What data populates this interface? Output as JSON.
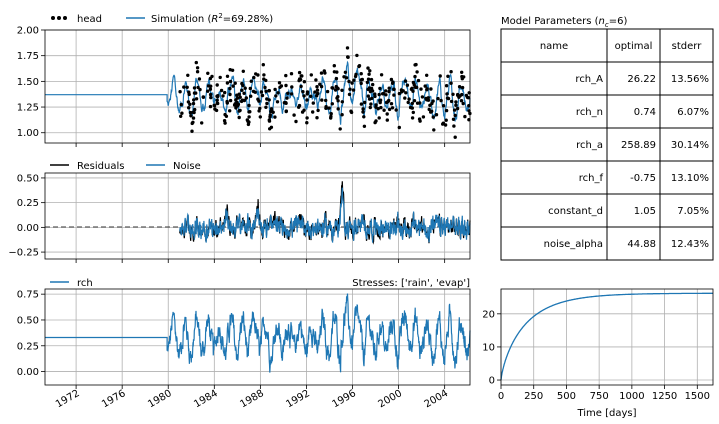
{
  "chart_data": [
    {
      "panel": "head",
      "type": "line",
      "xlim": [
        1969.3,
        2006.2
      ],
      "ylim": [
        0.9,
        2.0
      ],
      "yticks": [
        1.0,
        1.25,
        1.5,
        1.75,
        2.0
      ],
      "ytick_labels": [
        "1.00",
        "1.25",
        "1.50",
        "1.75",
        "2.00"
      ],
      "grid": true,
      "legend": {
        "placement": "above-left",
        "entries": [
          {
            "label": "head",
            "style": "dots",
            "color": "#000000"
          },
          {
            "label_prefix": "Simulation (",
            "label_sym": "R",
            "label_sup": "2",
            "label_suffix": "=69.28%)",
            "style": "line",
            "color": "#1f77b4"
          }
        ]
      },
      "series": [
        {
          "name": "head",
          "style": "dots",
          "x_range": [
            1981.0,
            2006.2
          ],
          "y_mean": 1.35,
          "y_min": 0.92,
          "y_max": 1.98
        },
        {
          "name": "Simulation",
          "style": "line",
          "constant_before": [
            1969.3,
            1979.9
          ],
          "constant_value": 1.37,
          "x_range": [
            1979.9,
            2006.2
          ],
          "y_min": 1.02,
          "y_max": 1.82
        }
      ]
    },
    {
      "panel": "residuals",
      "type": "line",
      "xlim": [
        1969.3,
        2006.2
      ],
      "ylim": [
        -0.32,
        0.55
      ],
      "yticks": [
        -0.25,
        0.0,
        0.25,
        0.5
      ],
      "ytick_labels": [
        "−0.25",
        "0.00",
        "0.25",
        "0.50"
      ],
      "zero_line": "dashed",
      "grid": true,
      "legend": {
        "placement": "above-left",
        "entries": [
          {
            "label": "Residuals",
            "color": "#000000"
          },
          {
            "label": "Noise",
            "color": "#1f77b4"
          }
        ]
      },
      "series": [
        {
          "name": "Residuals",
          "x_range": [
            1981.0,
            2006.2
          ],
          "y_min": -0.3,
          "y_max": 0.52
        },
        {
          "name": "Noise",
          "x_range": [
            1981.0,
            2006.2
          ],
          "y_min": -0.28,
          "y_max": 0.45
        }
      ]
    },
    {
      "panel": "stresses",
      "type": "line",
      "xlim": [
        1969.3,
        2006.2
      ],
      "ylim": [
        -0.13,
        0.8
      ],
      "yticks": [
        0.0,
        0.25,
        0.5,
        0.75
      ],
      "ytick_labels": [
        "0.00",
        "0.25",
        "0.50",
        "0.75"
      ],
      "xticks": [
        1972,
        1976,
        1980,
        1984,
        1988,
        1992,
        1996,
        2000,
        2004
      ],
      "xtick_labels": [
        "1972",
        "1976",
        "1980",
        "1984",
        "1988",
        "1992",
        "1996",
        "2000",
        "2004"
      ],
      "title_right": "Stresses: ['rain', 'evap']",
      "grid": true,
      "legend": {
        "placement": "above-left",
        "entries": [
          {
            "label": "rch",
            "color": "#1f77b4"
          }
        ]
      },
      "series": [
        {
          "name": "rch",
          "constant_before": [
            1969.3,
            1979.9
          ],
          "constant_value": 0.33,
          "x_range": [
            1979.9,
            2006.2
          ],
          "y_min": -0.12,
          "y_max": 0.78
        }
      ]
    },
    {
      "panel": "step-response",
      "type": "line",
      "xlim": [
        0,
        1620
      ],
      "ylim": [
        -1.5,
        27.5
      ],
      "xticks": [
        0,
        250,
        500,
        750,
        1000,
        1250,
        1500
      ],
      "xtick_labels": [
        "0",
        "250",
        "500",
        "750",
        "1000",
        "1250",
        "1500"
      ],
      "yticks": [
        0,
        10,
        20
      ],
      "ytick_labels": [
        "0",
        "10",
        "20"
      ],
      "xlabel": "Time [days]",
      "grid": true,
      "series": [
        {
          "name": "",
          "function": "gamma-step",
          "A": 26.22,
          "n": 0.74,
          "a": 258.89,
          "color": "#1f77b4"
        }
      ]
    }
  ],
  "parameters_table": {
    "title_prefix": "Model Parameters (",
    "title_sym": "n",
    "title_sub": "c",
    "title_suffix": "=6)",
    "headers": [
      "name",
      "optimal",
      "stderr"
    ],
    "rows": [
      [
        "rch_A",
        "26.22",
        "13.56%"
      ],
      [
        "rch_n",
        "0.74",
        "6.07%"
      ],
      [
        "rch_a",
        "258.89",
        "30.14%"
      ],
      [
        "rch_f",
        "-0.75",
        "13.10%"
      ],
      [
        "constant_d",
        "1.05",
        "7.05%"
      ],
      [
        "noise_alpha",
        "44.88",
        "12.43%"
      ]
    ]
  },
  "colors": {
    "simulation": "#1f77b4",
    "observed": "#000000",
    "grid": "#b0b0b0"
  }
}
